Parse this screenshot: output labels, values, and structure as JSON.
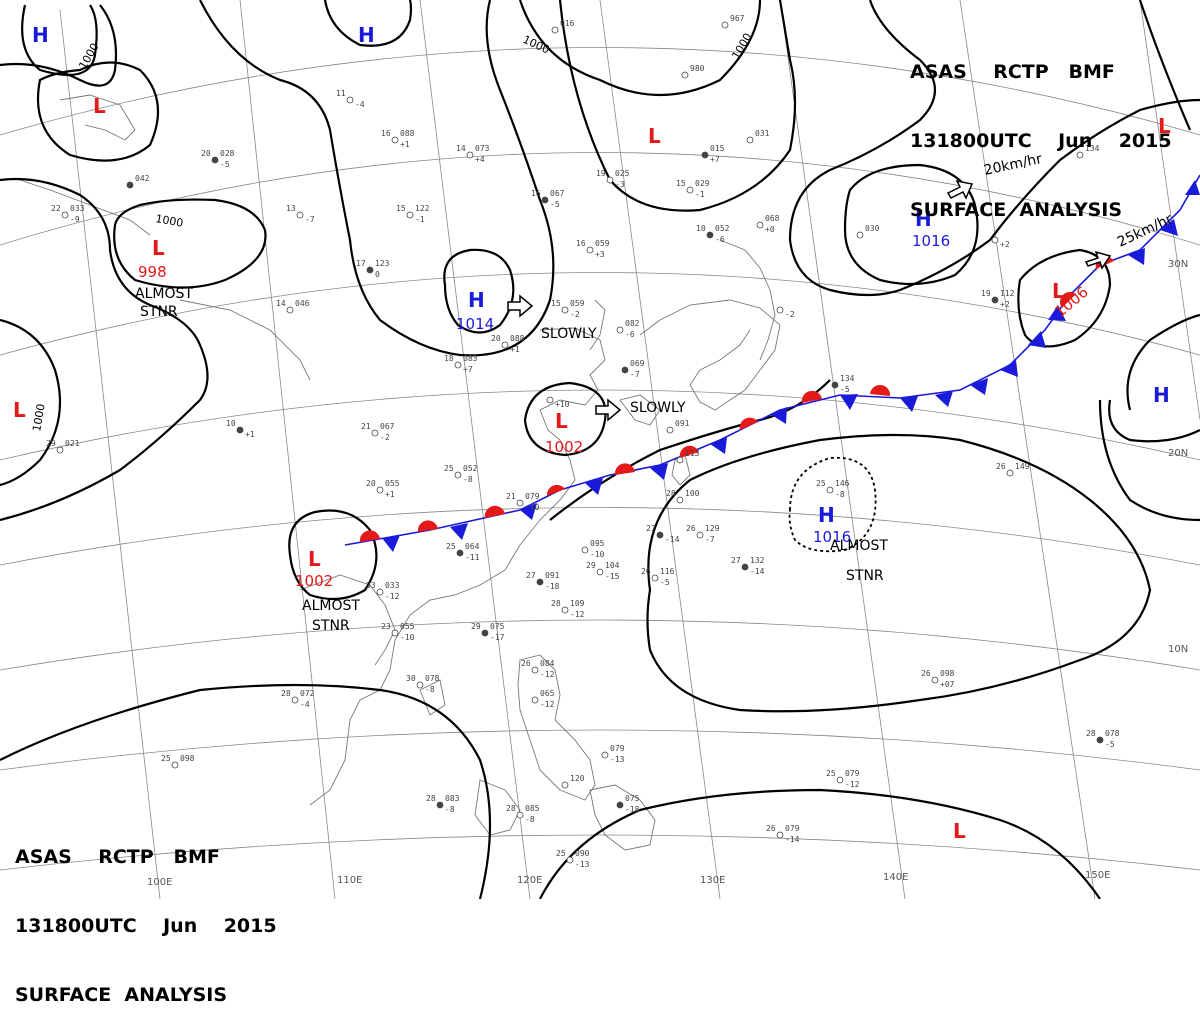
{
  "header_top": {
    "line1": "ASAS    RCTP   BMF",
    "line2": "131800UTC    Jun    2015",
    "line3": "SURFACE  ANALYSIS"
  },
  "header_bottom": {
    "line1": "ASAS    RCTP   BMF",
    "line2": "131800UTC    Jun    2015",
    "line3": "SURFACE  ANALYSIS"
  },
  "grid_labels": {
    "longitudes": [
      "100E",
      "110E",
      "120E",
      "130E",
      "140E",
      "150E"
    ],
    "latitudes": [
      "30N",
      "20N",
      "10N"
    ]
  },
  "isobar_label": "1000",
  "pressure_systems": [
    {
      "type": "H",
      "pressure": ""
    },
    {
      "type": "H",
      "pressure": ""
    },
    {
      "type": "L",
      "pressure": ""
    },
    {
      "type": "L",
      "pressure": "998"
    },
    {
      "type": "L",
      "pressure": ""
    },
    {
      "type": "H",
      "pressure": "1014"
    },
    {
      "type": "L",
      "pressure": "1002"
    },
    {
      "type": "L",
      "pressure": "1002"
    },
    {
      "type": "L",
      "pressure": ""
    },
    {
      "type": "H",
      "pressure": "1016"
    },
    {
      "type": "L",
      "pressure": "1006"
    },
    {
      "type": "L",
      "pressure": ""
    },
    {
      "type": "H",
      "pressure": ""
    },
    {
      "type": "H",
      "pressure": "1016"
    },
    {
      "type": "L",
      "pressure": ""
    }
  ],
  "annotations": {
    "almost_stnr_1": [
      "ALMOST",
      "STNR"
    ],
    "almost_stnr_2": [
      "ALMOST",
      "STNR"
    ],
    "almost_stnr_3": [
      "ALMOST",
      "STNR"
    ],
    "slowly_1": "SLOWLY",
    "slowly_2": "SLOWLY",
    "speed_1": "20km/hr",
    "speed_2": "25km/hr"
  },
  "stations": [
    {
      "temp": "20",
      "pressure": "028",
      "tend": "-5"
    },
    {
      "temp": "11",
      "pressure": "",
      "tend": "-4"
    },
    {
      "temp": "16",
      "pressure": "088",
      "tend": "+1"
    },
    {
      "temp": "14",
      "pressure": "073",
      "tend": "+4"
    },
    {
      "temp": "",
      "pressure": "042",
      "tend": ""
    },
    {
      "temp": "22",
      "pressure": "033",
      "tend": "-9"
    },
    {
      "temp": "13",
      "pressure": "",
      "tend": "-7"
    },
    {
      "temp": "15",
      "pressure": "122",
      "tend": "-1"
    },
    {
      "temp": "17",
      "pressure": "123",
      "tend": "0"
    },
    {
      "temp": "14",
      "pressure": "046",
      "tend": ""
    },
    {
      "temp": "15",
      "pressure": "059",
      "tend": "-2"
    },
    {
      "temp": "16",
      "pressure": "059",
      "tend": "+3"
    },
    {
      "temp": "16",
      "pressure": "067",
      "tend": "-5"
    },
    {
      "temp": "20",
      "pressure": "088",
      "tend": "+1"
    },
    {
      "temp": "18",
      "pressure": "083",
      "tend": "+7"
    },
    {
      "temp": "21",
      "pressure": "067",
      "tend": "-2"
    },
    {
      "temp": "10",
      "pressure": "",
      "tend": "+1"
    },
    {
      "temp": "29",
      "pressure": "021",
      "tend": ""
    },
    {
      "temp": "25",
      "pressure": "052",
      "tend": "-8"
    },
    {
      "temp": "20",
      "pressure": "055",
      "tend": "+1"
    },
    {
      "temp": "25",
      "pressure": "064",
      "tend": "-11"
    },
    {
      "temp": "21",
      "pressure": "079",
      "tend": "-10"
    },
    {
      "temp": "33",
      "pressure": "033",
      "tend": "-12"
    },
    {
      "temp": "23",
      "pressure": "055",
      "tend": "-10"
    },
    {
      "temp": "29",
      "pressure": "075",
      "tend": "-17"
    },
    {
      "temp": "30",
      "pressure": "078",
      "tend": "-8"
    },
    {
      "temp": "28",
      "pressure": "072",
      "tend": "-4"
    },
    {
      "temp": "25",
      "pressure": "098",
      "tend": ""
    },
    {
      "temp": "28",
      "pressure": "083",
      "tend": "-8"
    },
    {
      "temp": "28",
      "pressure": "085",
      "tend": "-8"
    },
    {
      "temp": "25",
      "pressure": "090",
      "tend": "-13"
    },
    {
      "temp": "",
      "pressure": "120",
      "tend": ""
    },
    {
      "temp": "",
      "pressure": "075",
      "tend": "-18"
    },
    {
      "temp": "",
      "pressure": "079",
      "tend": "-13"
    },
    {
      "temp": "",
      "pressure": "065",
      "tend": "-12"
    },
    {
      "temp": "26",
      "pressure": "084",
      "tend": "-12"
    },
    {
      "temp": "27",
      "pressure": "091",
      "tend": "-18"
    },
    {
      "temp": "28",
      "pressure": "109",
      "tend": "-12"
    },
    {
      "temp": "29",
      "pressure": "104",
      "tend": "-15"
    },
    {
      "temp": "",
      "pressure": "095",
      "tend": "-10"
    },
    {
      "temp": "27",
      "pressure": "",
      "tend": "-14"
    },
    {
      "temp": "28",
      "pressure": "100",
      "tend": ""
    },
    {
      "temp": "26",
      "pressure": "116",
      "tend": "-5"
    },
    {
      "temp": "26",
      "pressure": "129",
      "tend": "-7"
    },
    {
      "temp": "27",
      "pressure": "132",
      "tend": "-14"
    },
    {
      "temp": "25",
      "pressure": "146",
      "tend": "-8"
    },
    {
      "temp": "26",
      "pressure": "149",
      "tend": ""
    },
    {
      "temp": "26",
      "pressure": "098",
      "tend": "+07"
    },
    {
      "temp": "28",
      "pressure": "078",
      "tend": "-5"
    },
    {
      "temp": "25",
      "pressure": "079",
      "tend": "-12"
    },
    {
      "temp": "26",
      "pressure": "079",
      "tend": "-14"
    },
    {
      "temp": "",
      "pressure": "082",
      "tend": "-6"
    },
    {
      "temp": "",
      "pressure": "069",
      "tend": "-7"
    },
    {
      "temp": "",
      "pressure": "",
      "tend": "+10"
    },
    {
      "temp": "",
      "pressure": "091",
      "tend": ""
    },
    {
      "temp": "",
      "pressure": "113",
      "tend": ""
    },
    {
      "temp": "",
      "pressure": "134",
      "tend": "-5"
    },
    {
      "temp": "",
      "pressure": "016",
      "tend": ""
    },
    {
      "temp": "",
      "pressure": "967",
      "tend": ""
    },
    {
      "temp": "",
      "pressure": "980",
      "tend": ""
    },
    {
      "temp": "",
      "pressure": "015",
      "tend": "+7"
    },
    {
      "temp": "19",
      "pressure": "025",
      "tend": "-3"
    },
    {
      "temp": "15",
      "pressure": "029",
      "tend": "-1"
    },
    {
      "temp": "",
      "pressure": "031",
      "tend": ""
    },
    {
      "temp": "10",
      "pressure": "052",
      "tend": "-6"
    },
    {
      "temp": "",
      "pressure": "068",
      "tend": "+0"
    },
    {
      "temp": "",
      "pressure": "030",
      "tend": ""
    },
    {
      "temp": "",
      "pressure": "",
      "tend": "+2"
    },
    {
      "temp": "19",
      "pressure": "112",
      "tend": "+2"
    },
    {
      "temp": "",
      "pressure": "134",
      "tend": ""
    },
    {
      "temp": "",
      "pressure": "",
      "tend": "-2"
    }
  ],
  "colors": {
    "high": "#1a1adb",
    "low": "#e41a1a",
    "front_warm": "#e41a1a",
    "front_cold": "#1a1adb",
    "isobar": "#000000",
    "grid": "#888888",
    "coast": "#777777"
  },
  "icons": [
    "wind-arrow-icon",
    "station-model-icon"
  ]
}
